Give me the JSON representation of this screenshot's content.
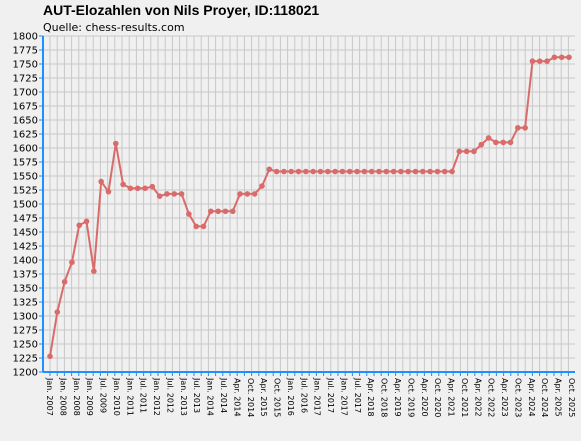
{
  "chart_data": {
    "type": "line",
    "title": "AUT-Elozahlen von Nils Proyer, ID:118021",
    "subtitle": "Quelle: chess-results.com",
    "xlabel": "",
    "ylabel": "",
    "ylim": [
      1200,
      1800
    ],
    "ytick_step": 25,
    "grid": true,
    "line_color": "#d96b6b",
    "axis_color": "#1e90ff",
    "x_tick_labels": [
      "Jan. 2007",
      "Jan. 2008",
      "Jan. 2008",
      "Jan. 2009",
      "Jul. 2009",
      "Jan. 2010",
      "Jan. 2011",
      "Jul. 2011",
      "Jan. 2012",
      "Jul. 2012",
      "Jan. 2013",
      "Jul. 2013",
      "Jan. 2014",
      "Jul. 2014",
      "Apr. 2014",
      "Oct. 2014",
      "Apr. 2015",
      "Oct. 2015",
      "Jan. 2016",
      "Jul. 2016",
      "Jan. 2017",
      "Jul. 2017",
      "Jan. 2017",
      "Jul. 2017",
      "Apr. 2018",
      "Oct. 2018",
      "Apr. 2019",
      "Oct. 2019",
      "Apr. 2020",
      "Oct. 2020",
      "Apr. 2021",
      "Oct. 2021",
      "Apr. 2022",
      "Oct. 2022",
      "Apr. 2023",
      "Oct. 2023",
      "Apr. 2024",
      "Oct. 2024",
      "Apr. 2025",
      "Oct. 2025"
    ],
    "series": [
      {
        "values": [
          1228,
          1307,
          1361,
          1396,
          1462,
          1469,
          1380,
          1540,
          1522,
          1608,
          1535,
          1528,
          1528,
          1528,
          1531,
          1514,
          1518,
          1518,
          1518,
          1482,
          1460,
          1460,
          1487,
          1487,
          1487,
          1487,
          1518,
          1518,
          1518,
          1532,
          1562,
          1558,
          1558,
          1558,
          1558,
          1558,
          1558,
          1558,
          1558,
          1558,
          1558,
          1558,
          1558,
          1558,
          1558,
          1558,
          1558,
          1558,
          1558,
          1558,
          1558,
          1558,
          1558,
          1558,
          1558,
          1558,
          1594,
          1594,
          1594,
          1606,
          1618,
          1610,
          1610,
          1610,
          1636,
          1636,
          1755,
          1755,
          1755,
          1762,
          1762,
          1762
        ]
      }
    ]
  }
}
